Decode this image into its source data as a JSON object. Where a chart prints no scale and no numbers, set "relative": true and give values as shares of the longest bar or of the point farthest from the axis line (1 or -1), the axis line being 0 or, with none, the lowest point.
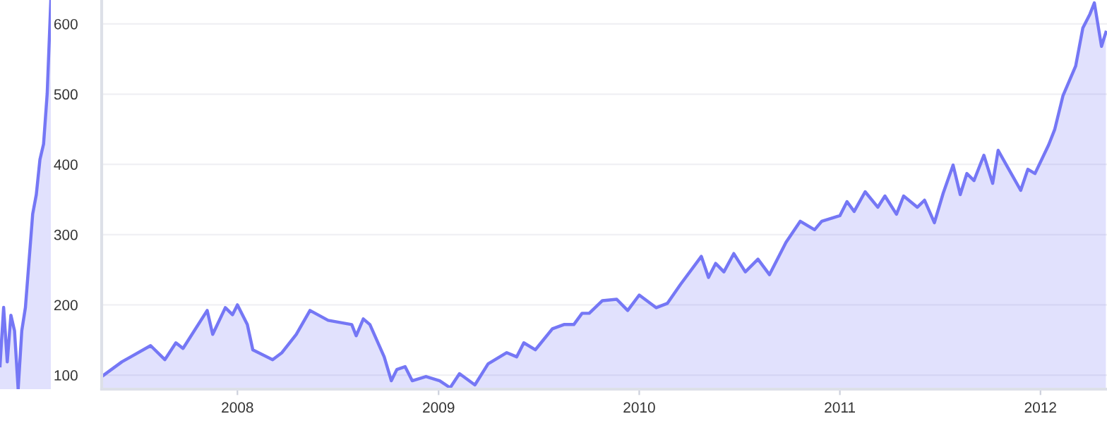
{
  "chart_data": [
    {
      "type": "area",
      "categories": [
        null,
        null,
        null,
        null,
        null,
        null,
        null,
        null,
        null,
        null,
        null,
        null,
        null,
        null,
        null
      ],
      "values": [
        0.06,
        0.21,
        0.07,
        0.19,
        0.15,
        0,
        0.15,
        0.21,
        0.33,
        0.45,
        0.5,
        0.59,
        0.63,
        0.76,
        1
      ],
      "color": "#7577f5",
      "relative": true,
      "tick_labels": false
    },
    {
      "type": "area",
      "color": "#7577f5",
      "x": [
        "2007-05-01",
        "2007-06-05",
        "2007-06-21",
        "2007-07-27",
        "2007-08-22",
        "2007-09-11",
        "2007-09-24",
        "2007-11-07",
        "2007-11-17",
        "2007-12-10",
        "2007-12-23",
        "2008-01-01",
        "2008-01-19",
        "2008-01-29",
        "2008-03-05",
        "2008-03-22",
        "2008-04-17",
        "2008-05-12",
        "2008-06-14",
        "2008-07-27",
        "2008-08-04",
        "2008-08-17",
        "2008-08-29",
        "2008-09-24",
        "2008-10-07",
        "2008-10-17",
        "2008-11-01",
        "2008-11-14",
        "2008-12-09",
        "2009-01-03",
        "2009-01-22",
        "2009-02-08",
        "2009-03-08",
        "2009-04-01",
        "2009-05-05",
        "2009-05-23",
        "2009-06-05",
        "2009-06-26",
        "2009-07-27",
        "2009-08-17",
        "2009-09-04",
        "2009-09-19",
        "2009-10-02",
        "2009-10-26",
        "2009-11-21",
        "2009-12-11",
        "2010-01-01",
        "2010-02-01",
        "2010-02-21",
        "2010-03-17",
        "2010-04-24",
        "2010-05-07",
        "2010-05-20",
        "2010-06-04",
        "2010-06-22",
        "2010-07-13",
        "2010-08-05",
        "2010-08-26",
        "2010-09-25",
        "2010-10-21",
        "2010-11-16",
        "2010-11-29",
        "2011-01-01",
        "2011-01-14",
        "2011-01-27",
        "2011-02-16",
        "2011-03-11",
        "2011-03-24",
        "2011-04-14",
        "2011-04-27",
        "2011-05-22",
        "2011-06-04",
        "2011-06-22",
        "2011-07-08",
        "2011-07-26",
        "2011-08-08",
        "2011-08-20",
        "2011-09-02",
        "2011-09-20",
        "2011-10-06",
        "2011-10-16",
        "2011-10-31",
        "2011-11-26",
        "2011-12-09",
        "2011-12-22",
        "2012-01-16",
        "2012-01-27",
        "2012-02-11",
        "2012-03-05",
        "2012-03-18",
        "2012-03-31",
        "2012-04-08",
        "2012-04-21",
        "2012-04-29"
      ],
      "values": [
        99,
        119,
        126,
        142,
        122,
        146,
        138,
        192,
        158,
        196,
        186,
        200,
        172,
        136,
        122,
        132,
        158,
        192,
        178,
        172,
        156,
        180,
        172,
        126,
        92,
        108,
        112,
        92,
        98,
        92,
        82,
        102,
        86,
        116,
        132,
        126,
        146,
        136,
        166,
        172,
        172,
        188,
        188,
        206,
        208,
        192,
        214,
        196,
        202,
        229,
        269,
        239,
        259,
        247,
        273,
        247,
        265,
        243,
        289,
        319,
        307,
        319,
        327,
        347,
        333,
        361,
        339,
        355,
        329,
        355,
        339,
        349,
        317,
        359,
        399,
        357,
        387,
        377,
        413,
        373,
        420,
        399,
        363,
        393,
        387,
        428,
        450,
        498,
        540,
        594,
        614,
        630,
        568,
        588
      ],
      "xlim": [
        "2007-04-29",
        "2012-05-01"
      ],
      "xticks": [
        {
          "value": "2008",
          "label": "2008"
        },
        {
          "value": "2009",
          "label": "2009"
        },
        {
          "value": "2010",
          "label": "2010"
        },
        {
          "value": "2011",
          "label": "2011"
        },
        {
          "value": "2012",
          "label": "2012"
        }
      ],
      "ylim": [
        80,
        634
      ],
      "yticks": [
        100,
        200,
        300,
        400,
        500,
        600
      ],
      "grid": "y"
    }
  ]
}
